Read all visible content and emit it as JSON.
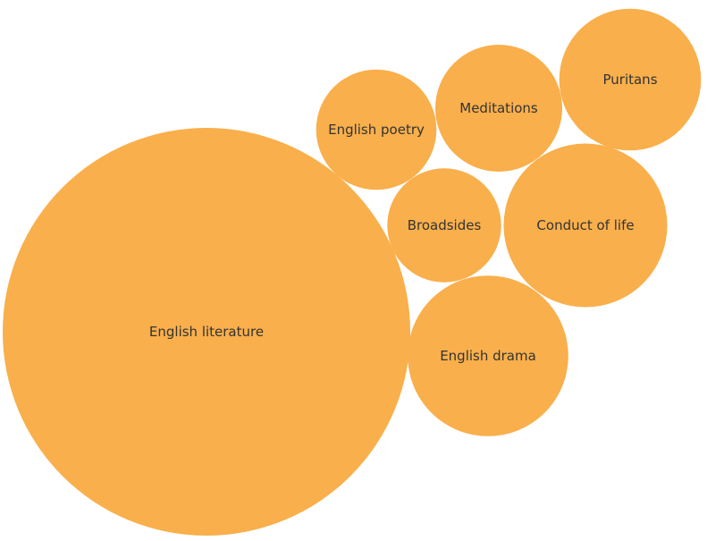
{
  "chart_data": {
    "type": "bubble",
    "title": "",
    "color": "#F9AF4B",
    "label_color": "#333333",
    "bubbles": [
      {
        "label": "English literature",
        "value": 100
      },
      {
        "label": "English drama",
        "value": 15.5
      },
      {
        "label": "Conduct of life",
        "value": 16.1
      },
      {
        "label": "Puritans",
        "value": 12.1
      },
      {
        "label": "Meditations",
        "value": 9.7
      },
      {
        "label": "English poetry",
        "value": 8.7
      },
      {
        "label": "Broadsides",
        "value": 7.8
      }
    ]
  }
}
